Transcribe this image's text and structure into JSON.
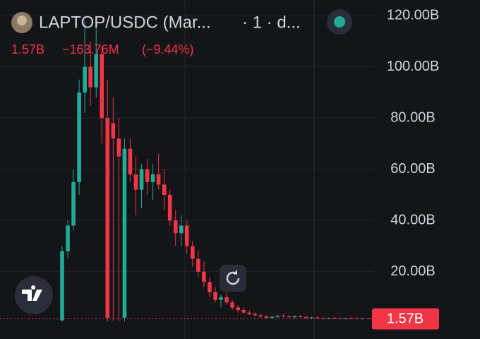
{
  "chart_data": {
    "type": "candlestick",
    "title": "LAPTOP/USDC (Mar...",
    "interval": "· 1 · d...",
    "last": {
      "value": 1.57,
      "label": "1.57B"
    },
    "change": {
      "value": -0.16376,
      "label": "−163.76M"
    },
    "change_pct": {
      "value": -9.44,
      "label": "(−9.44%)"
    },
    "up_color": "#22ab94",
    "down_color": "#f23645",
    "open": [
      1,
      28,
      38,
      55,
      90,
      100,
      92,
      105,
      80,
      78,
      72,
      2,
      68,
      58,
      52,
      60,
      55,
      58,
      54,
      50,
      40,
      35,
      38,
      30,
      25,
      20,
      16,
      12,
      9,
      10,
      8,
      6,
      5,
      4,
      3.5,
      3,
      2.5,
      2,
      2.4,
      2.8,
      2.5,
      2.2,
      2.6,
      2.3,
      1.9,
      2.1,
      1.8,
      1.7,
      1.9,
      1.8,
      1.6,
      1.85,
      1.75,
      1.6,
      1.73
    ],
    "high": [
      30,
      40,
      60,
      95,
      118,
      110,
      115,
      108,
      95,
      88,
      80,
      72,
      72,
      65,
      62,
      64,
      62,
      66,
      60,
      52,
      44,
      42,
      40,
      32,
      28,
      24,
      18,
      14,
      11,
      12,
      9,
      7,
      6,
      5,
      4,
      3.5,
      3,
      2.6,
      3.2,
      3.4,
      3,
      2.8,
      3,
      2.6,
      2.4,
      2.5,
      2.2,
      2,
      2.3,
      2.1,
      2,
      2.2,
      2,
      1.9,
      1.9
    ],
    "low": [
      0.5,
      25,
      36,
      50,
      82,
      85,
      88,
      70,
      0.5,
      0.8,
      0.5,
      0.5,
      55,
      42,
      45,
      50,
      48,
      52,
      44,
      38,
      30,
      30,
      27,
      22,
      18,
      14,
      10,
      8,
      6,
      7,
      5,
      4,
      3.5,
      3,
      2.5,
      2,
      1.8,
      1.5,
      2,
      2.2,
      2,
      1.8,
      2.1,
      1.7,
      1.6,
      1.7,
      1.5,
      1.4,
      1.6,
      1.5,
      1.4,
      1.6,
      1.5,
      1.4,
      1.5
    ],
    "close": [
      28,
      38,
      55,
      90,
      100,
      92,
      105,
      80,
      2,
      72,
      65,
      68,
      58,
      52,
      60,
      55,
      58,
      54,
      50,
      40,
      35,
      38,
      30,
      25,
      20,
      16,
      12,
      9,
      10,
      8,
      6,
      5,
      4,
      3.5,
      3,
      2.5,
      2,
      2.4,
      2.8,
      2.5,
      2.2,
      2.6,
      2.3,
      1.9,
      2.1,
      1.8,
      1.7,
      1.9,
      1.8,
      1.6,
      1.85,
      1.75,
      1.6,
      1.73,
      1.57
    ],
    "ylim": [
      -6.3,
      126.1
    ],
    "yticks": [
      {
        "value": 20,
        "label": "20.00B"
      },
      {
        "value": 40,
        "label": "40.00B"
      },
      {
        "value": 60,
        "label": "60.00B"
      },
      {
        "value": 80,
        "label": "80.00B"
      },
      {
        "value": 100,
        "label": "100.00B"
      },
      {
        "value": 120,
        "label": "120.00B"
      }
    ],
    "grid": true
  }
}
